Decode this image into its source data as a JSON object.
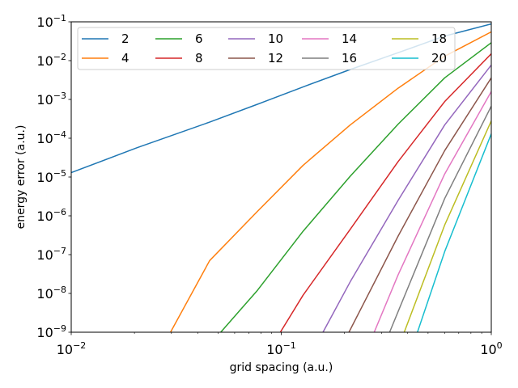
{
  "chart_data": {
    "type": "line",
    "xlabel": "grid spacing (a.u.)",
    "ylabel": "energy error (a.u.)",
    "xscale": "log",
    "yscale": "log",
    "xlim": [
      0.01,
      1
    ],
    "ylim": [
      1e-09,
      0.1
    ],
    "xticks": [
      {
        "value": 0.01,
        "base": "10",
        "exp": "−2"
      },
      {
        "value": 0.1,
        "base": "10",
        "exp": "−1"
      },
      {
        "value": 1,
        "base": "10",
        "exp": "0"
      }
    ],
    "yticks": [
      {
        "value": 1e-09,
        "base": "10",
        "exp": "−9"
      },
      {
        "value": 1e-08,
        "base": "10",
        "exp": "−8"
      },
      {
        "value": 1e-07,
        "base": "10",
        "exp": "−7"
      },
      {
        "value": 1e-06,
        "base": "10",
        "exp": "−6"
      },
      {
        "value": 1e-05,
        "base": "10",
        "exp": "−5"
      },
      {
        "value": 0.0001,
        "base": "10",
        "exp": "−4"
      },
      {
        "value": 0.001,
        "base": "10",
        "exp": "−3"
      },
      {
        "value": 0.01,
        "base": "10",
        "exp": "−2"
      },
      {
        "value": 0.1,
        "base": "10",
        "exp": "−1"
      }
    ],
    "grid": false,
    "legend": {
      "placement": "top-left",
      "columns": 5
    },
    "series": [
      {
        "name": "2",
        "color": "#1f77b4",
        "points": [
          [
            0.01,
            1.3e-05
          ],
          [
            0.0206,
            5.7e-05
          ],
          [
            0.0456,
            0.00026
          ],
          [
            0.077,
            0.00075
          ],
          [
            0.127,
            0.0021
          ],
          [
            0.213,
            0.0059
          ],
          [
            0.36,
            0.016
          ],
          [
            0.6,
            0.043
          ],
          [
            1.0,
            0.088
          ]
        ]
      },
      {
        "name": "4",
        "color": "#ff7f0e",
        "points": [
          [
            0.0297,
            1e-09
          ],
          [
            0.0456,
            7e-08
          ],
          [
            0.077,
            1.3e-06
          ],
          [
            0.127,
            2e-05
          ],
          [
            0.213,
            0.00022
          ],
          [
            0.36,
            0.00195
          ],
          [
            0.6,
            0.013
          ],
          [
            1.0,
            0.055
          ]
        ]
      },
      {
        "name": "6",
        "color": "#2ca02c",
        "points": [
          [
            0.0515,
            1e-09
          ],
          [
            0.077,
            1.2e-08
          ],
          [
            0.127,
            4e-07
          ],
          [
            0.213,
            1.05e-05
          ],
          [
            0.36,
            0.00023
          ],
          [
            0.6,
            0.0036
          ],
          [
            1.0,
            0.029
          ]
        ]
      },
      {
        "name": "8",
        "color": "#d62728",
        "points": [
          [
            0.099,
            1e-09
          ],
          [
            0.127,
            9e-09
          ],
          [
            0.213,
            4.5e-07
          ],
          [
            0.36,
            2.5e-05
          ],
          [
            0.6,
            0.00088
          ],
          [
            1.0,
            0.015
          ]
        ]
      },
      {
        "name": "10",
        "color": "#9467bd",
        "points": [
          [
            0.158,
            1e-09
          ],
          [
            0.213,
            2e-08
          ],
          [
            0.36,
            2.5e-06
          ],
          [
            0.6,
            0.00022
          ],
          [
            1.0,
            0.0077
          ]
        ]
      },
      {
        "name": "12",
        "color": "#8c564b",
        "points": [
          [
            0.21,
            1e-09
          ],
          [
            0.36,
            3e-07
          ],
          [
            0.6,
            4.8e-05
          ],
          [
            1.0,
            0.0036
          ]
        ]
      },
      {
        "name": "14",
        "color": "#e377c2",
        "points": [
          [
            0.277,
            1e-09
          ],
          [
            0.36,
            3e-08
          ],
          [
            0.6,
            1.2e-05
          ],
          [
            1.0,
            0.0016
          ]
        ]
      },
      {
        "name": "16",
        "color": "#7f7f7f",
        "points": [
          [
            0.328,
            1e-09
          ],
          [
            0.6,
            2.8e-06
          ],
          [
            1.0,
            0.00067
          ]
        ]
      },
      {
        "name": "18",
        "color": "#bcbd22",
        "points": [
          [
            0.385,
            1e-09
          ],
          [
            0.6,
            5.8e-07
          ],
          [
            1.0,
            0.00028
          ]
        ]
      },
      {
        "name": "20",
        "color": "#17becf",
        "points": [
          [
            0.445,
            1e-09
          ],
          [
            0.6,
            1.2e-07
          ],
          [
            1.0,
            0.00013
          ]
        ]
      }
    ]
  }
}
